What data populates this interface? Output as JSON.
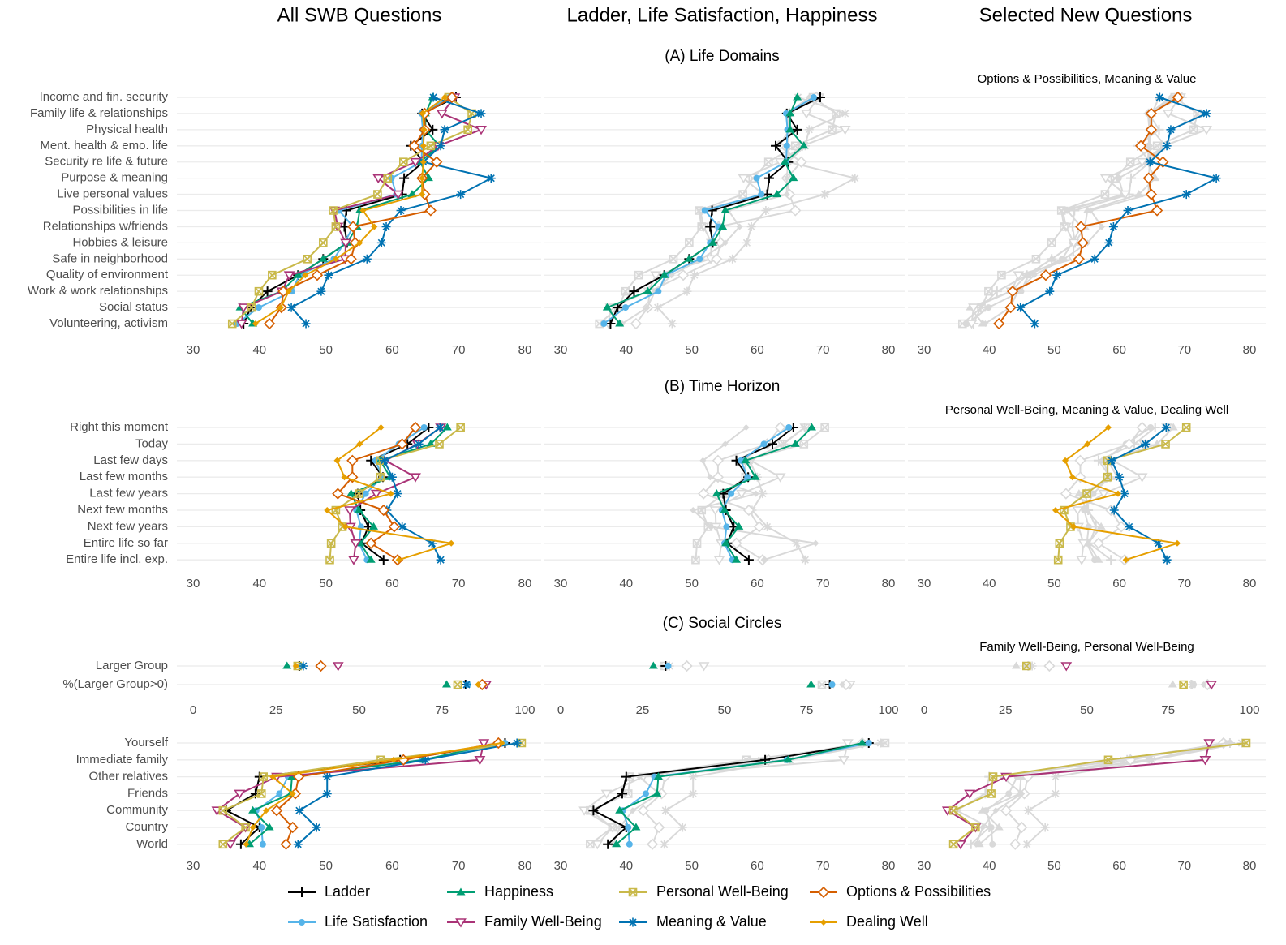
{
  "column_titles": [
    "All SWB Questions",
    "Ladder, Life Satisfaction, Happiness",
    "Selected New Questions"
  ],
  "chart_data": [
    {
      "type": "line",
      "title": "(A) Life Domains",
      "categories": [
        "Income and fin. security",
        "Family life & relationships",
        "Physical health",
        "Ment. health & emo. life",
        "Security re life & future",
        "Purpose & meaning",
        "Live personal values",
        "Possibilities in life",
        "Relationships w/friends",
        "Hobbies & leisure",
        "Safe in neighborhood",
        "Quality of environment",
        "Work & work relationships",
        "Social status",
        "Volunteering, activism"
      ],
      "xlim": [
        30,
        80
      ],
      "xticks": [
        30,
        40,
        50,
        60,
        70,
        80
      ],
      "grid": true,
      "panels": [
        {
          "highlight": [
            0,
            1,
            2,
            3,
            4,
            5,
            6,
            7
          ]
        },
        {
          "highlight": [
            0,
            1,
            2
          ]
        },
        {
          "subtitle": "Options & Possibilities, Meaning & Value",
          "highlight": [
            6,
            5
          ]
        }
      ],
      "series": [
        {
          "name": "Ladder",
          "color": "#000000",
          "shape": "plus",
          "values": [
            69.6,
            64.5,
            66.1,
            62.8,
            64.7,
            61.8,
            61.5,
            53.1,
            52.8,
            53.2,
            49.6,
            45.8,
            41.2,
            38.7,
            37.6
          ]
        },
        {
          "name": "Life Satisfaction",
          "color": "#56b4e9",
          "shape": "circle",
          "values": [
            68.6,
            64.4,
            64.6,
            64.5,
            64.4,
            59.9,
            60.6,
            52.0,
            54.1,
            52.8,
            51.2,
            46.0,
            44.9,
            39.9,
            36.6
          ]
        },
        {
          "name": "Happiness",
          "color": "#009e73",
          "shape": "triangle",
          "values": [
            66.1,
            65.0,
            65.0,
            67.1,
            64.2,
            65.5,
            63.0,
            55.1,
            54.7,
            53.2,
            49.6,
            45.8,
            43.3,
            37.1,
            39.0
          ]
        },
        {
          "name": "Family Well-Being",
          "color": "#aa3377",
          "shape": "triangle-down-open",
          "values": [
            69.4,
            67.5,
            73.4,
            66.9,
            63.5,
            57.9,
            60.9,
            51.3,
            51.8,
            53.0,
            52.9,
            44.5,
            43.4,
            37.6,
            37.3
          ]
        },
        {
          "name": "Personal Well-Being",
          "color": "#c9b94a",
          "shape": "square-cross",
          "values": [
            68.5,
            72.0,
            71.4,
            65.8,
            61.7,
            59.3,
            57.8,
            51.1,
            51.5,
            49.6,
            47.2,
            41.9,
            39.9,
            38.8,
            35.9
          ]
        },
        {
          "name": "Meaning & Value",
          "color": "#0072b2",
          "shape": "asterisk",
          "values": [
            66.2,
            73.4,
            67.9,
            67.3,
            64.7,
            74.9,
            70.3,
            61.3,
            59.1,
            58.4,
            56.2,
            50.4,
            49.3,
            44.8,
            47.0
          ]
        },
        {
          "name": "Options & Possibilities",
          "color": "#d55e00",
          "shape": "diamond-open",
          "values": [
            69.0,
            64.9,
            64.9,
            63.3,
            66.7,
            64.5,
            64.9,
            65.8,
            54.1,
            54.4,
            53.8,
            48.7,
            43.6,
            43.3,
            41.5
          ]
        },
        {
          "name": "Dealing Well",
          "color": "#e69f00",
          "shape": "diamond",
          "values": [
            67.9,
            64.6,
            64.8,
            64.7,
            64.7,
            64.5,
            64.5,
            55.6,
            57.3,
            55.1,
            51.5,
            46.9,
            44.4,
            43.2,
            39.4
          ]
        }
      ]
    },
    {
      "type": "line",
      "title": "(B) Time Horizon",
      "categories": [
        "Right this moment",
        "Today",
        "Last few days",
        "Last few months",
        "Last few years",
        "Next few months",
        "Next few years",
        "Entire life so far",
        "Entire life incl. exp."
      ],
      "xlim": [
        30,
        80
      ],
      "xticks": [
        30,
        40,
        50,
        60,
        70,
        80
      ],
      "grid": true,
      "panels": [
        {
          "highlight": [
            0,
            1,
            2,
            3,
            4,
            5,
            6,
            7
          ]
        },
        {
          "highlight": [
            0,
            1,
            2
          ]
        },
        {
          "subtitle": "Personal Well-Being, Meaning & Value, Dealing Well",
          "highlight": [
            4,
            5,
            7
          ]
        }
      ],
      "series": [
        {
          "values": [
            65.5,
            62.3,
            56.8,
            58.6,
            54.8,
            55.2,
            56.4,
            55.4,
            58.7
          ]
        },
        {
          "values": [
            64.8,
            61.0,
            57.5,
            58.5,
            56.0,
            54.6,
            55.3,
            55.0,
            56.2
          ]
        },
        {
          "values": [
            68.3,
            65.8,
            58.2,
            59.7,
            53.8,
            55.0,
            57.2,
            55.2,
            56.8
          ]
        },
        {
          "values": [
            67.3,
            63.8,
            59.0,
            63.5,
            57.6,
            53.6,
            53.7,
            54.5,
            54.2
          ]
        },
        {
          "values": [
            70.3,
            67.1,
            58.2,
            58.2,
            55.0,
            51.5,
            52.5,
            50.8,
            50.6
          ]
        },
        {
          "values": [
            67.2,
            64.0,
            58.8,
            60.0,
            60.8,
            59.2,
            61.5,
            66.0,
            67.3
          ]
        },
        {
          "values": [
            63.5,
            61.5,
            54.0,
            54.0,
            51.8,
            58.7,
            60.3,
            56.8,
            60.8
          ]
        },
        {
          "values": [
            58.3,
            55.1,
            51.7,
            52.8,
            59.8,
            50.2,
            53.0,
            68.9,
            61.0
          ]
        }
      ]
    },
    {
      "type": "scatter",
      "title": "(C) Social Circles",
      "categories": [
        "Larger Group",
        "%(Larger Group>0)"
      ],
      "xlim": [
        0,
        100
      ],
      "xticks": [
        0,
        25,
        50,
        75,
        100
      ],
      "grid": true,
      "panels": [
        {
          "highlight": [
            0,
            1,
            2,
            3,
            4,
            5,
            6,
            7
          ]
        },
        {
          "highlight": [
            0,
            1,
            2
          ]
        },
        {
          "subtitle": "Family Well-Being, Personal Well-Being",
          "highlight": [
            3,
            4
          ]
        }
      ],
      "series": [
        {
          "values": [
            32.0,
            82.1
          ]
        },
        {
          "values": [
            32.8,
            82.8
          ]
        },
        {
          "values": [
            28.3,
            76.4
          ]
        },
        {
          "values": [
            43.7,
            88.3
          ]
        },
        {
          "values": [
            31.5,
            79.7
          ]
        },
        {
          "values": [
            33.2,
            82.4
          ]
        },
        {
          "values": [
            38.5,
            87.1
          ]
        },
        {
          "values": [
            31.0,
            85.9
          ]
        }
      ]
    },
    {
      "type": "line",
      "categories": [
        "Yourself",
        "Immediate family",
        "Other relatives",
        "Friends",
        "Community",
        "Country",
        "World"
      ],
      "xlim": [
        30,
        80
      ],
      "xticks": [
        30,
        40,
        50,
        60,
        70,
        80
      ],
      "grid": true,
      "panels": [
        {
          "highlight": [
            0,
            1,
            2,
            3,
            4,
            5,
            6,
            7
          ]
        },
        {
          "highlight": [
            0,
            1,
            2
          ]
        },
        {
          "highlight": [
            3,
            4
          ]
        }
      ],
      "series": [
        {
          "values": [
            77.0,
            61.2,
            40.0,
            39.4,
            35.0,
            40.0,
            37.2
          ]
        },
        {
          "values": [
            77.0,
            64.5,
            44.3,
            43.0,
            39.5,
            40.3,
            40.5
          ]
        },
        {
          "values": [
            76.0,
            64.7,
            44.9,
            44.7,
            39.0,
            41.5,
            38.5
          ]
        },
        {
          "values": [
            73.8,
            73.2,
            42.6,
            37.0,
            33.6,
            37.9,
            35.6
          ]
        },
        {
          "values": [
            79.5,
            58.3,
            40.6,
            40.3,
            34.5,
            37.9,
            34.5
          ]
        },
        {
          "values": [
            78.8,
            65.0,
            50.2,
            50.2,
            46.0,
            48.6,
            45.8
          ]
        },
        {
          "values": [
            76.0,
            61.7,
            45.9,
            45.4,
            42.6,
            45.0,
            44.0
          ]
        },
        {
          "values": [
            76.5,
            60.2,
            42.0,
            45.0,
            41.0,
            39.0,
            38.0
          ]
        }
      ]
    }
  ]
}
